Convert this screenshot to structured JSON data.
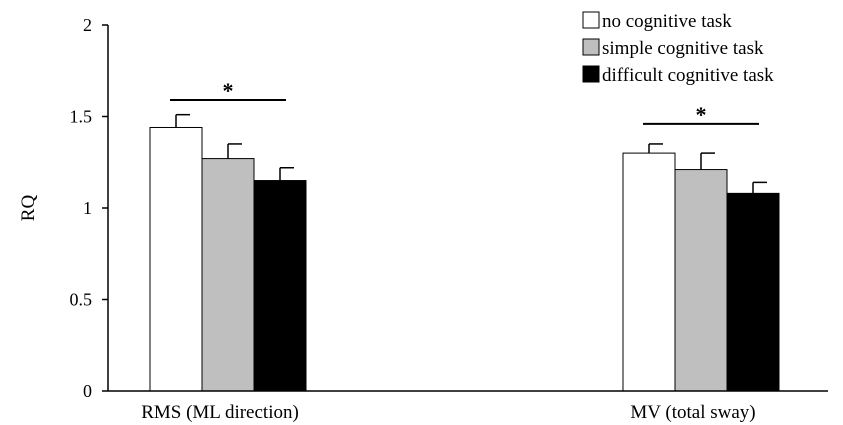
{
  "chart_data": {
    "type": "bar",
    "title": "",
    "xlabel": "",
    "ylabel": "RQ",
    "ylim": [
      0,
      2
    ],
    "yticks": [
      0,
      0.5,
      1,
      1.5,
      2
    ],
    "ytick_labels": [
      "0",
      "0.5",
      "1",
      "1.5",
      "2"
    ],
    "grid": false,
    "legend_position": "top-right",
    "categories": [
      "RMS (ML direction)",
      "MV (total sway)"
    ],
    "series": [
      {
        "name": "no cognitive task",
        "values": [
          1.44,
          1.3
        ],
        "errors": [
          0.07,
          0.05
        ],
        "color": "#ffffff"
      },
      {
        "name": "simple cognitive task",
        "values": [
          1.27,
          1.21
        ],
        "errors": [
          0.08,
          0.09
        ],
        "color": "#bfbfbf"
      },
      {
        "name": "difficult cognitive task",
        "values": [
          1.15,
          1.08
        ],
        "errors": [
          0.07,
          0.06
        ],
        "color": "#000000"
      }
    ],
    "significance": [
      {
        "category_index": 0,
        "from_series": 0,
        "to_series": 2,
        "y": 1.59,
        "label": "*"
      },
      {
        "category_index": 1,
        "from_series": 0,
        "to_series": 2,
        "y": 1.46,
        "label": "*"
      }
    ]
  }
}
